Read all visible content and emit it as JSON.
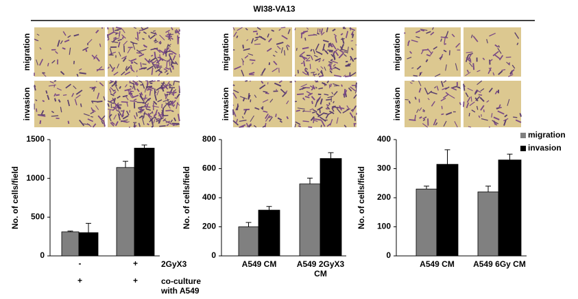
{
  "figure": {
    "title": "WI38-VA13",
    "image_rows": [
      "migration",
      "invasion"
    ]
  },
  "chart_data": [
    {
      "type": "bar",
      "ylabel": "No. of cells/field",
      "ylim": [
        0,
        1500
      ],
      "yticks": [
        0,
        500,
        1000,
        1500
      ],
      "categories": [
        null,
        null
      ],
      "condition_rows": [
        {
          "label": "2GyX3",
          "values": [
            "-",
            "+"
          ]
        },
        {
          "label": "co-culture with A549",
          "values": [
            "+",
            "+"
          ]
        }
      ],
      "series": [
        {
          "color": "#808080",
          "values": [
            310,
            1140
          ],
          "errors": [
            10,
            80
          ]
        },
        {
          "color": "#000000",
          "values": [
            300,
            1390
          ],
          "errors": [
            120,
            40
          ]
        }
      ]
    },
    {
      "type": "bar",
      "ylabel": "No. of cells/field",
      "ylim": [
        0,
        800
      ],
      "yticks": [
        0,
        200,
        400,
        600,
        800
      ],
      "categories": [
        "A549 CM",
        "A549 2GyX3 CM"
      ],
      "series": [
        {
          "color": "#808080",
          "values": [
            200,
            495
          ],
          "errors": [
            30,
            40
          ]
        },
        {
          "color": "#000000",
          "values": [
            315,
            670
          ],
          "errors": [
            25,
            40
          ]
        }
      ]
    },
    {
      "type": "bar",
      "ylabel": "No. of cells/field",
      "ylim": [
        0,
        400
      ],
      "yticks": [
        0,
        100,
        200,
        300,
        400
      ],
      "categories": [
        "A549 CM",
        "A549 6Gy CM"
      ],
      "legend": "upper right",
      "series": [
        {
          "name": "migration",
          "color": "#808080",
          "values": [
            230,
            220
          ],
          "errors": [
            10,
            20
          ]
        },
        {
          "name": "invasion",
          "color": "#000000",
          "values": [
            315,
            330
          ],
          "errors": [
            50,
            20
          ]
        }
      ]
    }
  ]
}
